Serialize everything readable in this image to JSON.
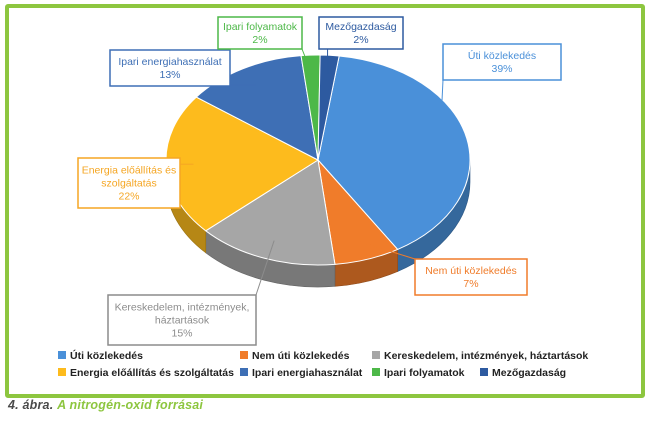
{
  "caption": {
    "number": "4. ábra.",
    "text": "A nitrogén-oxid forrásai"
  },
  "chart_data": {
    "type": "pie",
    "title": "",
    "labels": [
      "Úti közlekedés",
      "Nem úti közlekedés",
      "Kereskedelem, intézmények, háztartások",
      "Energia előállítás és szolgáltatás",
      "Ipari energiahasználat",
      "Ipari folyamatok",
      "Mezőgazdaság"
    ],
    "values": [
      39,
      7,
      15,
      22,
      13,
      2,
      2
    ],
    "value_labels": [
      "39%",
      "7%",
      "15%",
      "22%",
      "13%",
      "2%",
      "2%"
    ],
    "callout_labels": [
      [
        "Úti közlekedés"
      ],
      [
        "Nem úti közlekedés"
      ],
      [
        "Kereskedelem, intézmények,",
        "háztartások"
      ],
      [
        "Energia előállítás és",
        "szolgáltatás"
      ],
      [
        "Ipari energiahasználat"
      ],
      [
        "Ipari folyamatok"
      ],
      [
        "Mezőgazdaság"
      ]
    ],
    "legend_labels": [
      "Úti közlekedés",
      "Nem úti közlekedés",
      "Kereskedelem, intézmények, háztartások",
      "Energia  előállítás és szolgáltatás",
      "Ipari energiahasználat",
      "Ipari folyamatok",
      "Mezőgazdaság"
    ],
    "colors": [
      "#4a90d9",
      "#f07c2a",
      "#a6a6a6",
      "#fdbb1d",
      "#3e6fb5",
      "#4db848",
      "#2d5aa0"
    ],
    "label_colors": [
      "#4a90d9",
      "#f07c2a",
      "#8c8c8c",
      "#f5a623",
      "#3e6fb5",
      "#4db848",
      "#2d5aa0"
    ],
    "style": "3d-pie",
    "legend_position": "bottom"
  }
}
